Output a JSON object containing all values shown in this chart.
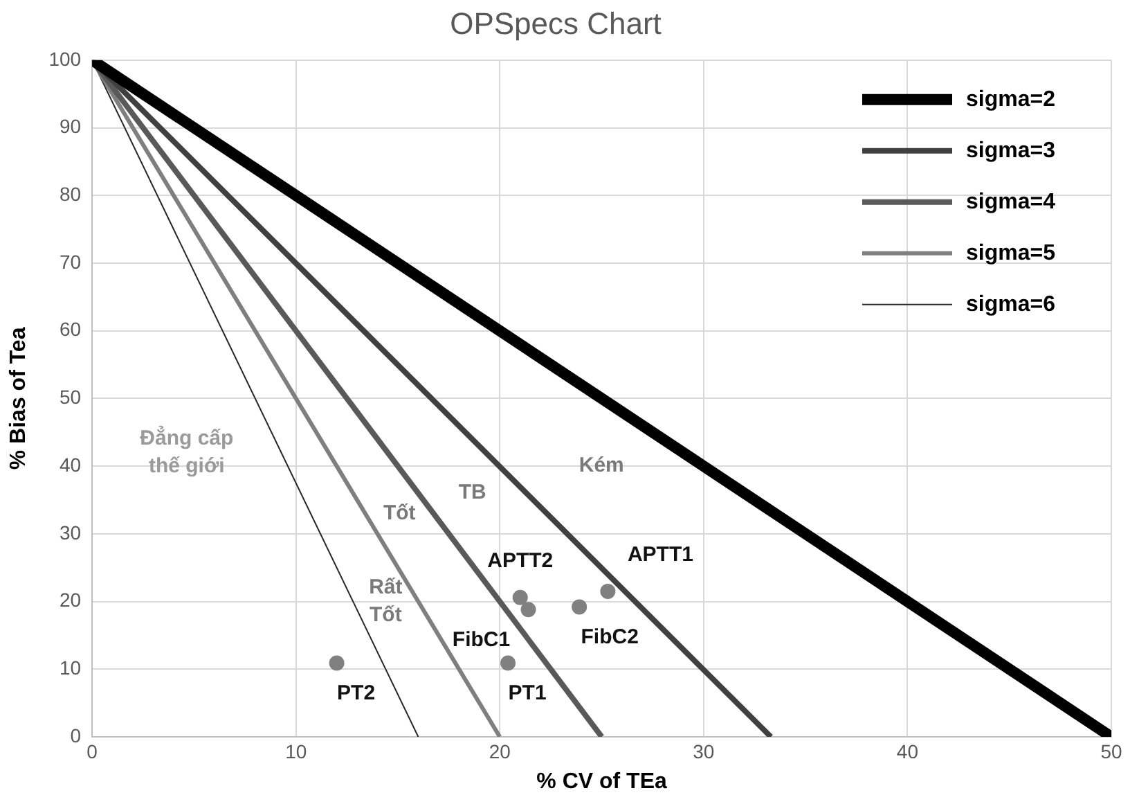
{
  "chart_data": {
    "type": "line",
    "title": "OPSpecs Chart",
    "xlabel": "% CV of TEa",
    "ylabel": "% Bias of Tea",
    "xlim": [
      0,
      50
    ],
    "xticks": [
      0,
      10,
      20,
      30,
      40,
      50
    ],
    "ylim": [
      0,
      100
    ],
    "yticks": [
      0,
      10,
      20,
      30,
      40,
      50,
      60,
      70,
      80,
      90,
      100
    ],
    "grid": true,
    "legend": "top right",
    "marker": "none",
    "line_style": "solid",
    "series": [
      {
        "name": "sigma=2",
        "color": "#000000",
        "x": [
          0,
          50
        ],
        "values": [
          100,
          0
        ]
      },
      {
        "name": "sigma=3",
        "color": "#404040",
        "x": [
          0,
          33.3
        ],
        "values": [
          100,
          0
        ]
      },
      {
        "name": "sigma=4",
        "color": "#595959",
        "x": [
          0,
          25
        ],
        "values": [
          100,
          0
        ]
      },
      {
        "name": "sigma=5",
        "color": "#7f7f7f",
        "x": [
          0,
          20
        ],
        "values": [
          100,
          0
        ]
      },
      {
        "name": "sigma=6",
        "color": "#262626",
        "x": [
          0,
          16
        ],
        "values": [
          100,
          0
        ]
      },
      {
        "type": "scatter",
        "color": "#808080",
        "marker": "circle",
        "x": [
          12,
          20.4,
          21,
          21.4,
          23.9,
          25.3
        ],
        "values": [
          10.9,
          10.9,
          20.6,
          18.8,
          19.2,
          21.5
        ]
      }
    ],
    "annotations": [
      {
        "text": "PT2",
        "x": 12,
        "y": 10.9
      },
      {
        "text": "PT1",
        "x": 20.4,
        "y": 10.9
      },
      {
        "text": "APTT2",
        "x": 21,
        "y": 20.6
      },
      {
        "text": "APTT1",
        "x": 25.3,
        "y": 21.5
      },
      {
        "text": "FibC1",
        "x": 21.4,
        "y": 18.8
      },
      {
        "text": "FibC2",
        "x": 23.9,
        "y": 19.2
      },
      "Đẳng cấp\nthế giới",
      "Rất\nTốt",
      "Tốt",
      "TB",
      "Kém"
    ]
  }
}
